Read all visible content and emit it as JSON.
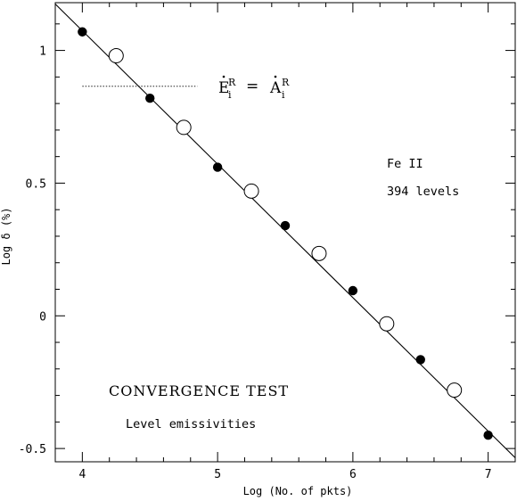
{
  "chart_data": {
    "type": "scatter",
    "xlabel": "Log (No. of pkts)",
    "ylabel": "Log δ (%)",
    "xlim": [
      3.8,
      7.2
    ],
    "ylim": [
      -0.55,
      1.18
    ],
    "xticks": [
      4,
      5,
      6,
      7
    ],
    "xtick_labels": [
      "4",
      "5",
      "6",
      "7"
    ],
    "yticks": [
      -0.5,
      0,
      0.5,
      1
    ],
    "ytick_labels": [
      "-0.5",
      "0",
      "0.5",
      "1"
    ],
    "grid": false,
    "series": [
      {
        "marker": "filled-circle",
        "x": [
          4.0,
          4.5,
          5.0,
          5.5,
          6.0,
          6.5,
          7.0
        ],
        "y": [
          1.07,
          0.82,
          0.56,
          0.34,
          0.095,
          -0.165,
          -0.45
        ]
      },
      {
        "marker": "open-circle",
        "x": [
          4.25,
          4.75,
          5.25,
          5.75,
          6.25,
          6.75
        ],
        "y": [
          0.98,
          0.71,
          0.47,
          0.235,
          -0.03,
          -0.28
        ]
      }
    ],
    "fit_line": {
      "x": [
        3.8,
        7.2
      ],
      "y": [
        1.175,
        -0.535
      ]
    },
    "reference_line": {
      "x": [
        4.0,
        4.85
      ],
      "y": [
        0.865,
        0.865
      ],
      "style": "dotted"
    },
    "annotations": {
      "equation_lhs": "E",
      "equation_lhs_sub": "i",
      "equation_lhs_sup": "R",
      "equation_eq": "=",
      "equation_rhs": "A",
      "equation_rhs_sub": "i",
      "equation_rhs_sup": "R",
      "ion": "Fe II",
      "levels": "394 levels",
      "test_title": "CONVERGENCE TEST",
      "test_subtitle": "Level emissivities"
    }
  }
}
